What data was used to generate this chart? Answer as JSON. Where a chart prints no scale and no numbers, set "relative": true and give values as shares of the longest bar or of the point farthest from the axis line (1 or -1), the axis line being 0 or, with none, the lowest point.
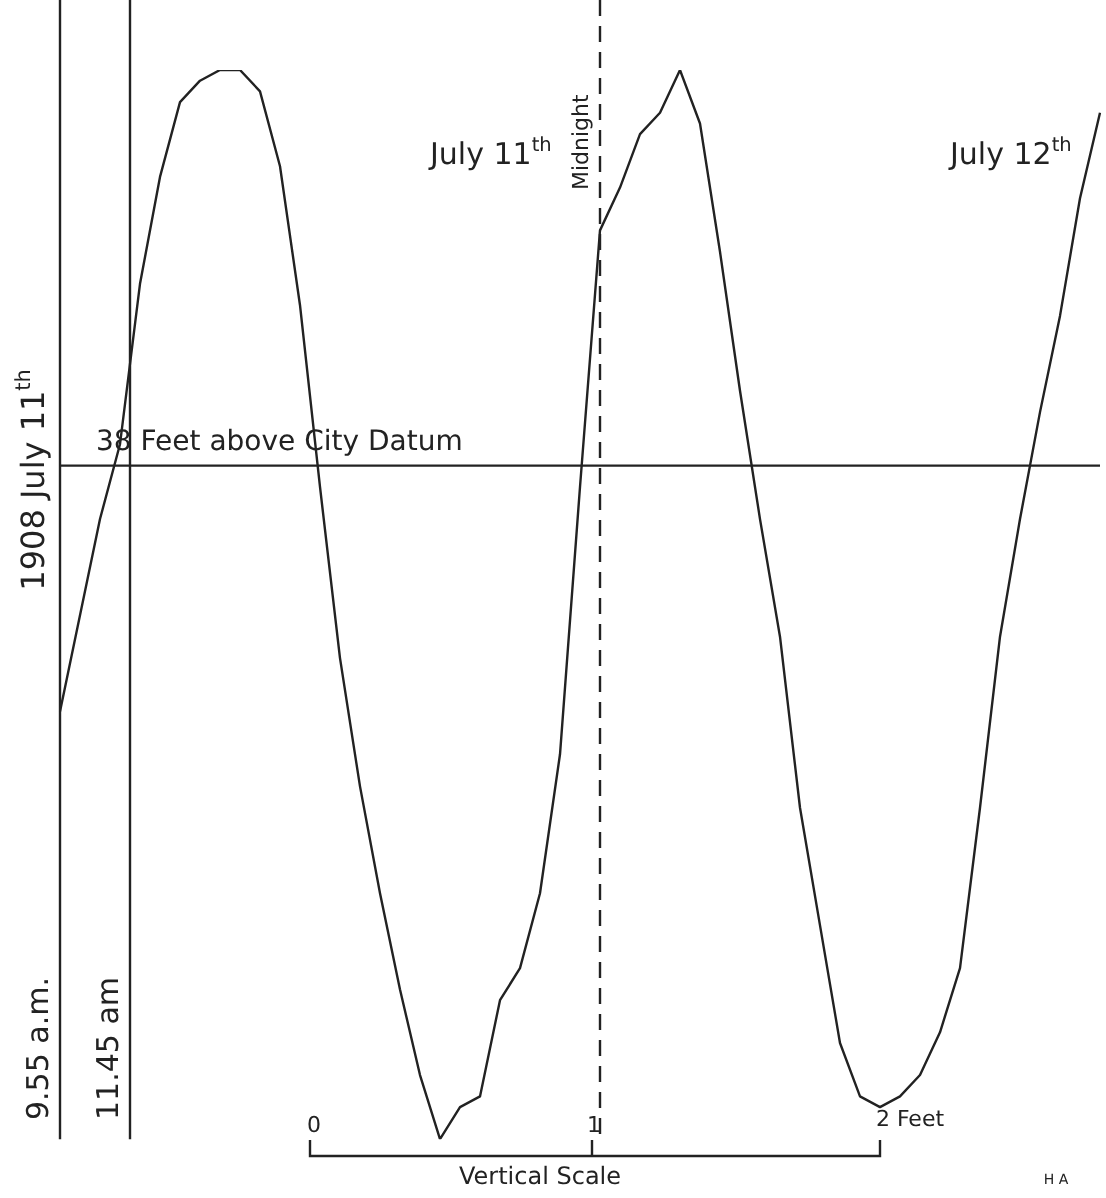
{
  "chart_data": {
    "type": "line",
    "relative": true,
    "grid": false,
    "legend": false,
    "marker": "none",
    "line_style": "solid",
    "categories": [
      null,
      null,
      null,
      null,
      null,
      null,
      null,
      null,
      null,
      null,
      null,
      null,
      null,
      null,
      null,
      null,
      null,
      null,
      null,
      null,
      null,
      null,
      null,
      null,
      null,
      null,
      null,
      null,
      null,
      null,
      null,
      null,
      null,
      null,
      null,
      null,
      null,
      null,
      null,
      null,
      null,
      null,
      null,
      null,
      null,
      null,
      null,
      null,
      null,
      null,
      null,
      null,
      null
    ],
    "series": [
      {
        "color": "#222222",
        "values": [
          0.4,
          0.49,
          0.58,
          0.65,
          0.8,
          0.9,
          0.97,
          0.99,
          1,
          1,
          0.98,
          0.91,
          0.78,
          0.61,
          0.45,
          0.33,
          0.23,
          0.14,
          0.06,
          0,
          0.03,
          0.04,
          0.13,
          0.16,
          0.23,
          0.36,
          0.61,
          0.85,
          0.89,
          0.94,
          0.96,
          1,
          0.95,
          0.83,
          0.7,
          0.58,
          0.47,
          0.31,
          0.2,
          0.09,
          0.04,
          0.03,
          0.04,
          0.06,
          0.1,
          0.16,
          0.31,
          0.47,
          0.58,
          0.68,
          0.77,
          0.88,
          0.96
        ]
      }
    ],
    "ref_lines": [
      {
        "axis": "y",
        "value": 0.63,
        "label": "38 Feet above City Datum"
      }
    ],
    "annotations": [
      "9.55 a.m.",
      "11.45 am",
      "Midnight",
      "July 11$^{th}$",
      "July 12$^{th}$",
      "1908 July 11$^{th}$",
      "0",
      "1",
      "2 Feet",
      "Vertical Scale",
      "H A"
    ]
  }
}
